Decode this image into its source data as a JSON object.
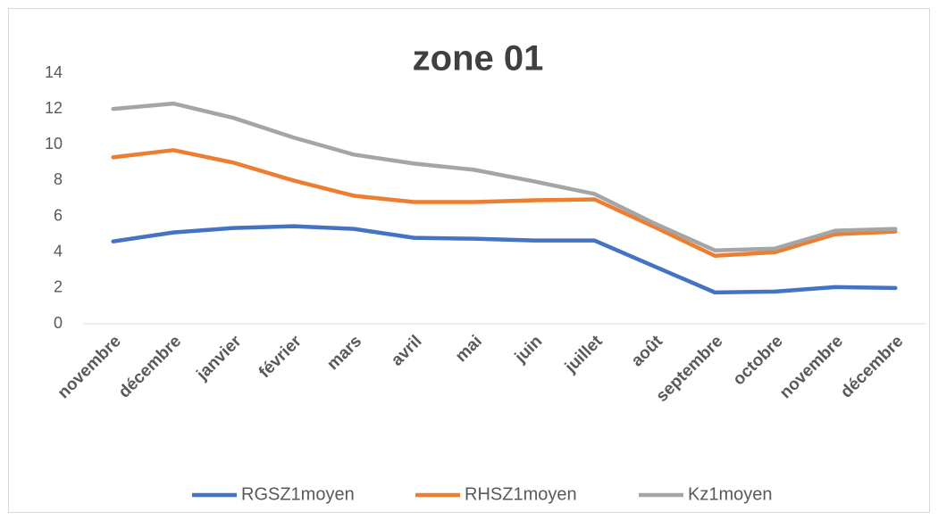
{
  "chart_data": {
    "type": "line",
    "title": "zone 01",
    "categories": [
      "novembre",
      "décembre",
      "janvier",
      "février",
      "mars",
      "avril",
      "mai",
      "juin",
      "juillet",
      "août",
      "septembre",
      "octobre",
      "novembre",
      "décembre"
    ],
    "series": [
      {
        "name": "RGSZ1moyen",
        "color": "#4472c4",
        "values": [
          4.6,
          5.1,
          5.35,
          5.45,
          5.3,
          4.8,
          4.75,
          4.65,
          4.65,
          3.2,
          1.75,
          1.8,
          2.05,
          2.0
        ]
      },
      {
        "name": "RHSZ1moyen",
        "color": "#ed7d31",
        "values": [
          9.3,
          9.7,
          9.0,
          8.0,
          7.15,
          6.8,
          6.8,
          6.9,
          6.95,
          5.4,
          3.8,
          4.0,
          5.0,
          5.15
        ]
      },
      {
        "name": "Kz1moyen",
        "color": "#a5a5a5",
        "values": [
          12.0,
          12.3,
          11.5,
          10.4,
          9.45,
          8.95,
          8.6,
          7.95,
          7.25,
          5.6,
          4.1,
          4.2,
          5.2,
          5.3
        ]
      }
    ],
    "ylim": [
      0,
      14
    ],
    "yticks": [
      0,
      2,
      4,
      6,
      8,
      10,
      12,
      14
    ],
    "grid": false,
    "legend": "bottom"
  }
}
